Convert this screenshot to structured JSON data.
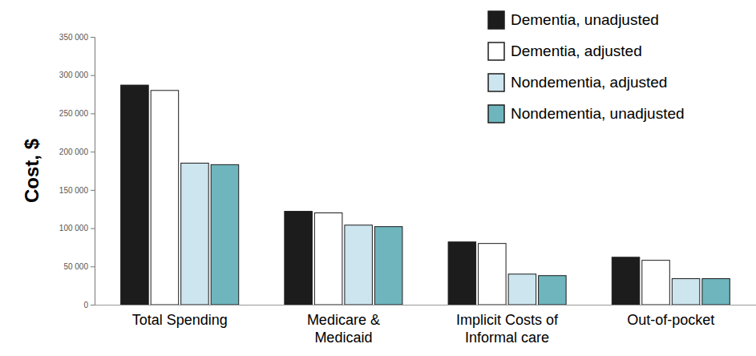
{
  "chart_data": {
    "type": "bar",
    "categories": [
      "Total Spending",
      "Medicare &\nMedicaid",
      "Implicit Costs of\nInformal care",
      "Out-of-pocket"
    ],
    "ylabel": "Cost, $",
    "series": [
      {
        "name": "Dementia, unadjusted",
        "color": "#1c1c1c",
        "values": [
          287000,
          122000,
          82000,
          62000
        ]
      },
      {
        "name": "Dementia, adjusted",
        "color": "#ffffff",
        "values": [
          280000,
          120000,
          80000,
          58000
        ]
      },
      {
        "name": "Nondementia, adjusted",
        "color": "#cce5ee",
        "values": [
          185000,
          104000,
          40000,
          34000
        ]
      },
      {
        "name": "Nondementia, unadjusted",
        "color": "#6fb5be",
        "values": [
          183000,
          102000,
          38000,
          34000
        ]
      }
    ],
    "ylim": [
      0,
      350000
    ],
    "yticks": [
      0,
      {
        "value": 50000,
        "label": "50 000"
      },
      {
        "value": 100000,
        "label": "100 000"
      },
      {
        "value": 150000,
        "label": "150 000"
      },
      {
        "value": 200000,
        "label": "200 000"
      },
      {
        "value": 250000,
        "label": "250 000"
      },
      {
        "value": 300000,
        "label": "300 000"
      },
      {
        "value": 350000,
        "label": "350 000"
      }
    ],
    "legend": "top-right",
    "grid": false
  }
}
